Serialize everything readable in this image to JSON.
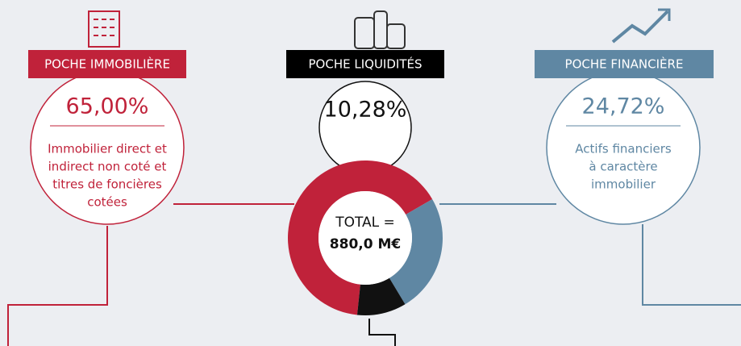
{
  "chart_data": {
    "type": "donut",
    "categories": [
      "POCHE IMMOBILIÈRE",
      "POCHE LIQUIDITÉS",
      "POCHE FINANCIÈRE"
    ],
    "values": [
      65.0,
      10.28,
      24.72
    ],
    "value_labels": [
      "65,00%",
      "10,28%",
      "24,72%"
    ],
    "colors": [
      "#c0223a",
      "#111111",
      "#5f87a3"
    ],
    "descriptions": [
      [
        "Immobilier direct et",
        "indirect non coté et",
        "titres de foncières",
        "cotées"
      ],
      [],
      [
        "Actifs financiers",
        "à caractère",
        "immobilier"
      ]
    ],
    "center_label": [
      "TOTAL =",
      "880,0 M€"
    ]
  }
}
